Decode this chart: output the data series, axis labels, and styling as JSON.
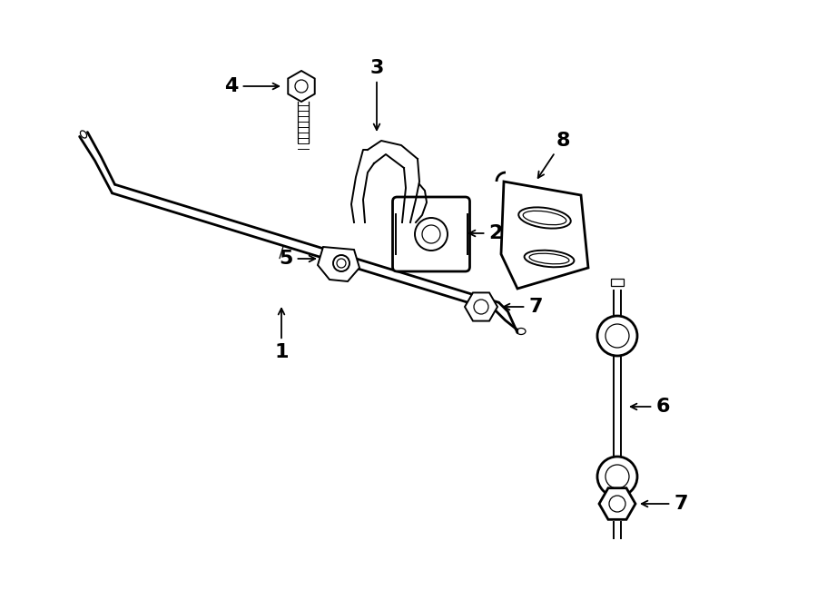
{
  "bg_color": "#ffffff",
  "line_color": "#000000",
  "fig_width": 9.0,
  "fig_height": 6.61,
  "lw": 1.4,
  "lw_thin": 0.9,
  "lw_thick": 2.0
}
